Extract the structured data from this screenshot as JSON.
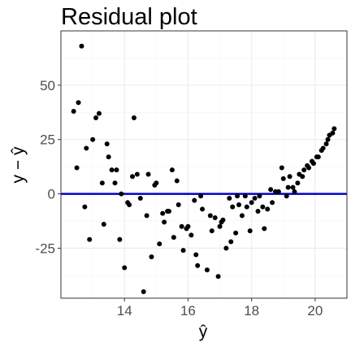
{
  "chart_data": {
    "type": "scatter",
    "title": "Residual plot",
    "xlabel": "ŷ",
    "ylabel": "y − ŷ",
    "xlim": [
      12.0,
      21.0
    ],
    "ylim": [
      -48,
      75
    ],
    "x_ticks": [
      14,
      16,
      18,
      20
    ],
    "x_tick_labels": [
      "14",
      "16",
      "18",
      "20"
    ],
    "y_ticks": [
      -25,
      0,
      25,
      50
    ],
    "y_tick_labels": [
      "-25",
      "0",
      "25",
      "50"
    ],
    "grid": true,
    "reference_line": {
      "y": 0,
      "color": "#0000cc"
    },
    "point_color": "#000000",
    "points": [
      {
        "x": 12.4,
        "y": 38
      },
      {
        "x": 12.5,
        "y": 12
      },
      {
        "x": 12.55,
        "y": 42
      },
      {
        "x": 12.65,
        "y": 68
      },
      {
        "x": 12.75,
        "y": -6
      },
      {
        "x": 12.8,
        "y": 21
      },
      {
        "x": 12.9,
        "y": -21
      },
      {
        "x": 13.0,
        "y": 25
      },
      {
        "x": 13.1,
        "y": 35
      },
      {
        "x": 13.2,
        "y": 37
      },
      {
        "x": 13.3,
        "y": 5
      },
      {
        "x": 13.35,
        "y": -14
      },
      {
        "x": 13.45,
        "y": 23
      },
      {
        "x": 13.5,
        "y": 17
      },
      {
        "x": 13.6,
        "y": 11
      },
      {
        "x": 13.7,
        "y": 5
      },
      {
        "x": 13.75,
        "y": 11
      },
      {
        "x": 13.85,
        "y": -21
      },
      {
        "x": 13.9,
        "y": 0
      },
      {
        "x": 14.0,
        "y": -34
      },
      {
        "x": 14.1,
        "y": -4
      },
      {
        "x": 14.15,
        "y": -5
      },
      {
        "x": 14.25,
        "y": 8
      },
      {
        "x": 14.3,
        "y": 35
      },
      {
        "x": 14.4,
        "y": 9
      },
      {
        "x": 14.5,
        "y": -2
      },
      {
        "x": 14.6,
        "y": -45
      },
      {
        "x": 14.7,
        "y": -10
      },
      {
        "x": 14.75,
        "y": 9
      },
      {
        "x": 14.85,
        "y": -29
      },
      {
        "x": 14.95,
        "y": 4
      },
      {
        "x": 15.0,
        "y": 5
      },
      {
        "x": 15.1,
        "y": -23
      },
      {
        "x": 15.2,
        "y": -9
      },
      {
        "x": 15.25,
        "y": -13
      },
      {
        "x": 15.35,
        "y": -8
      },
      {
        "x": 15.4,
        "y": -8
      },
      {
        "x": 15.5,
        "y": 11
      },
      {
        "x": 15.55,
        "y": -20
      },
      {
        "x": 15.65,
        "y": 6
      },
      {
        "x": 15.7,
        "y": -5
      },
      {
        "x": 15.8,
        "y": -15
      },
      {
        "x": 15.85,
        "y": -26
      },
      {
        "x": 15.95,
        "y": -16
      },
      {
        "x": 16.0,
        "y": -15
      },
      {
        "x": 16.1,
        "y": -19
      },
      {
        "x": 16.2,
        "y": -3
      },
      {
        "x": 16.25,
        "y": -28
      },
      {
        "x": 16.3,
        "y": -33
      },
      {
        "x": 16.4,
        "y": -1
      },
      {
        "x": 16.45,
        "y": -7
      },
      {
        "x": 16.6,
        "y": -35
      },
      {
        "x": 16.7,
        "y": -10
      },
      {
        "x": 16.75,
        "y": -17
      },
      {
        "x": 16.85,
        "y": -11
      },
      {
        "x": 16.95,
        "y": -38
      },
      {
        "x": 17.0,
        "y": -15
      },
      {
        "x": 17.05,
        "y": -13
      },
      {
        "x": 17.1,
        "y": -12
      },
      {
        "x": 17.2,
        "y": -25
      },
      {
        "x": 17.3,
        "y": -2
      },
      {
        "x": 17.35,
        "y": -22
      },
      {
        "x": 17.4,
        "y": -6
      },
      {
        "x": 17.5,
        "y": -18
      },
      {
        "x": 17.55,
        "y": -1
      },
      {
        "x": 17.6,
        "y": -5
      },
      {
        "x": 17.7,
        "y": -10
      },
      {
        "x": 17.8,
        "y": -1
      },
      {
        "x": 17.85,
        "y": -6
      },
      {
        "x": 17.95,
        "y": -17
      },
      {
        "x": 18.0,
        "y": -4
      },
      {
        "x": 18.1,
        "y": -2
      },
      {
        "x": 18.2,
        "y": -8
      },
      {
        "x": 18.25,
        "y": -1
      },
      {
        "x": 18.35,
        "y": -6
      },
      {
        "x": 18.4,
        "y": -16
      },
      {
        "x": 18.5,
        "y": -7
      },
      {
        "x": 18.6,
        "y": 2
      },
      {
        "x": 18.65,
        "y": -4
      },
      {
        "x": 18.75,
        "y": 1
      },
      {
        "x": 18.85,
        "y": 1
      },
      {
        "x": 18.95,
        "y": 12
      },
      {
        "x": 19.0,
        "y": 7
      },
      {
        "x": 19.1,
        "y": -1
      },
      {
        "x": 19.15,
        "y": 3
      },
      {
        "x": 19.2,
        "y": 8
      },
      {
        "x": 19.3,
        "y": 3
      },
      {
        "x": 19.35,
        "y": 1
      },
      {
        "x": 19.45,
        "y": 5
      },
      {
        "x": 19.5,
        "y": 9
      },
      {
        "x": 19.6,
        "y": 8
      },
      {
        "x": 19.65,
        "y": 11
      },
      {
        "x": 19.75,
        "y": 13
      },
      {
        "x": 19.8,
        "y": 12
      },
      {
        "x": 19.9,
        "y": 15
      },
      {
        "x": 19.95,
        "y": 14
      },
      {
        "x": 20.05,
        "y": 17
      },
      {
        "x": 20.1,
        "y": 17
      },
      {
        "x": 20.2,
        "y": 20
      },
      {
        "x": 20.25,
        "y": 21
      },
      {
        "x": 20.35,
        "y": 23
      },
      {
        "x": 20.4,
        "y": 25
      },
      {
        "x": 20.45,
        "y": 27
      },
      {
        "x": 20.55,
        "y": 28
      },
      {
        "x": 20.6,
        "y": 30
      }
    ]
  }
}
